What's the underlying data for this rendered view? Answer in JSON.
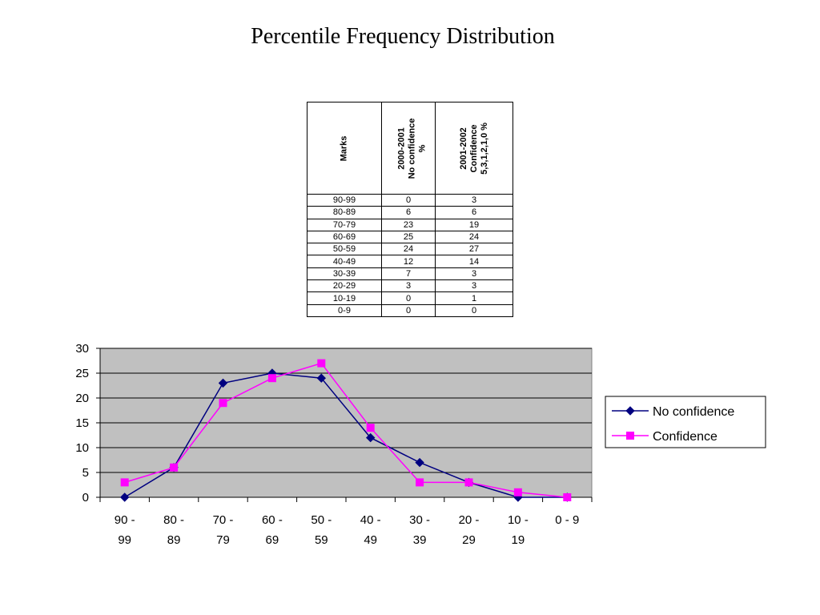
{
  "title": "Percentile Frequency Distribution",
  "table": {
    "headers": {
      "marks": "Marks",
      "col2": [
        "2000-2001",
        "No confidence",
        "%"
      ],
      "col3": [
        "2001-2002",
        "Confidence",
        "5,3,1,2,1,0 %"
      ]
    },
    "rows": [
      [
        "90-99",
        "0",
        "3"
      ],
      [
        "80-89",
        "6",
        "6"
      ],
      [
        "70-79",
        "23",
        "19"
      ],
      [
        "60-69",
        "25",
        "24"
      ],
      [
        "50-59",
        "24",
        "27"
      ],
      [
        "40-49",
        "12",
        "14"
      ],
      [
        "30-39",
        "7",
        "3"
      ],
      [
        "20-29",
        "3",
        "3"
      ],
      [
        "10-19",
        "0",
        "1"
      ],
      [
        "0-9",
        "0",
        "0"
      ]
    ]
  },
  "chart_data": {
    "type": "line",
    "categories": [
      [
        "90 -",
        "99"
      ],
      [
        "80 -",
        "89"
      ],
      [
        "70 -",
        "79"
      ],
      [
        "60 -",
        "69"
      ],
      [
        "50 -",
        "59"
      ],
      [
        "40 -",
        "49"
      ],
      [
        "30 -",
        "39"
      ],
      [
        "20 -",
        "29"
      ],
      [
        "10 -",
        "19"
      ],
      [
        "0 - 9"
      ]
    ],
    "series": [
      {
        "name": "No confidence",
        "values": [
          0,
          6,
          23,
          25,
          24,
          12,
          7,
          3,
          0,
          0
        ],
        "color": "#000080",
        "marker": "diamond"
      },
      {
        "name": "Confidence",
        "values": [
          3,
          6,
          19,
          24,
          27,
          14,
          3,
          3,
          1,
          0
        ],
        "color": "#ff00ff",
        "marker": "square"
      }
    ],
    "ylim": [
      0,
      30
    ],
    "yticks": [
      0,
      5,
      10,
      15,
      20,
      25,
      30
    ],
    "grid": true,
    "legend": "right",
    "plot_background": "#c0c0c0"
  }
}
